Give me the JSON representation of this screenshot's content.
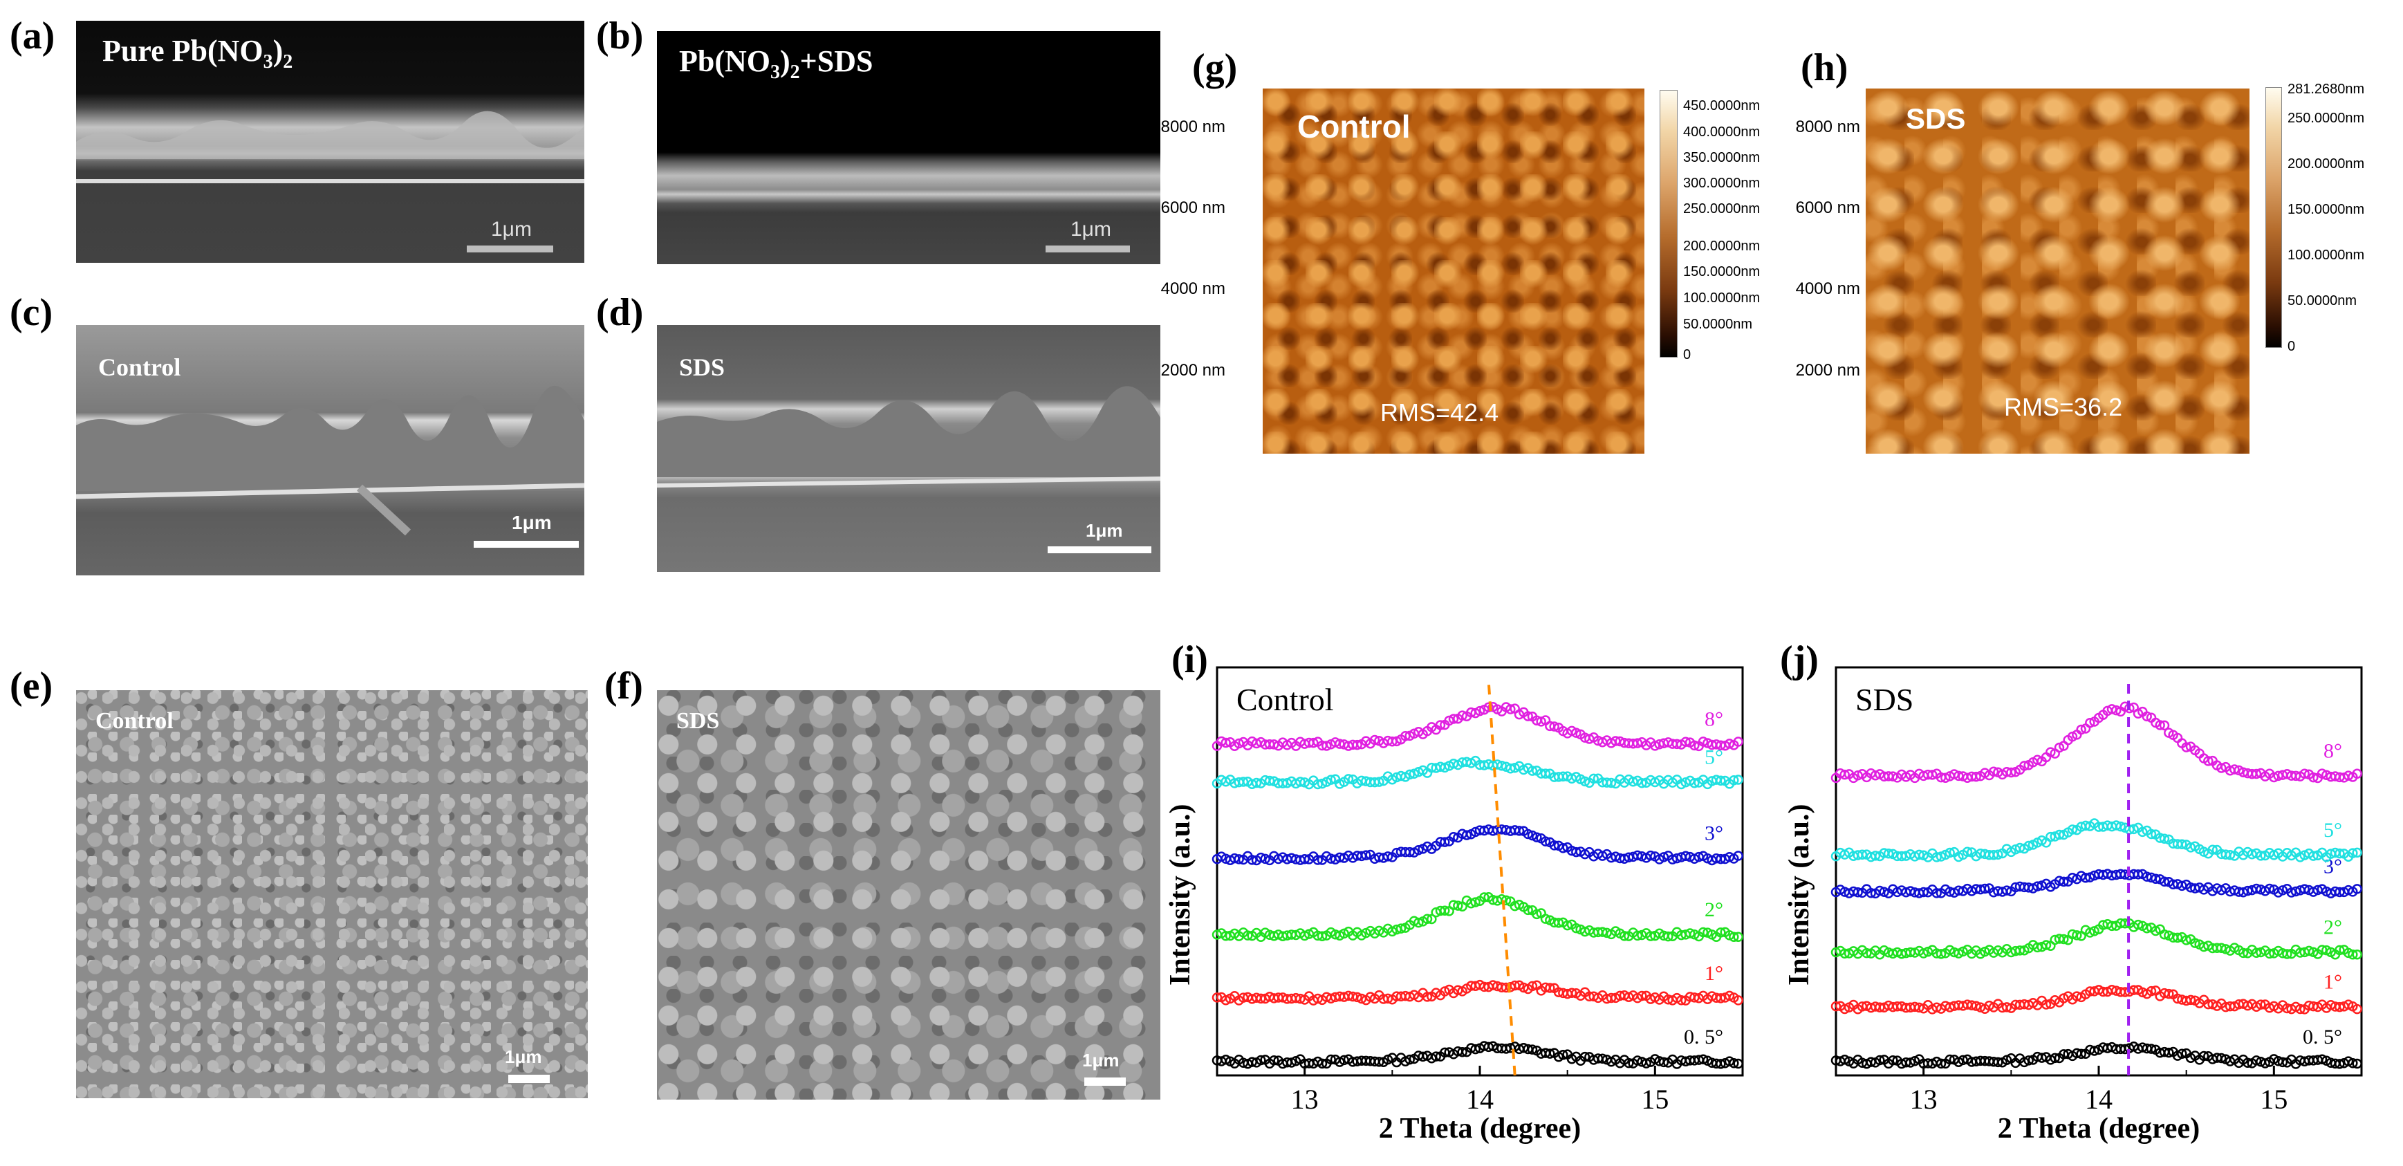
{
  "panels": {
    "a": {
      "letter": "(a)",
      "title": "Pure Pb(NO",
      "sub": "3",
      "close": ")",
      "sub2": "2",
      "scale": "1μm"
    },
    "b": {
      "letter": "(b)",
      "title": "Pb(NO",
      "sub": "3",
      "close": ")",
      "sub2": "2",
      "suffix": "+SDS",
      "scale": "1μm"
    },
    "c": {
      "letter": "(c)",
      "title": "Control",
      "scale": "1μm"
    },
    "d": {
      "letter": "(d)",
      "title": "SDS",
      "scale": "1μm"
    },
    "e": {
      "letter": "(e)",
      "title": "Control",
      "scale": "1μm"
    },
    "f": {
      "letter": "(f)",
      "title": "SDS",
      "scale": "1μm"
    },
    "g": {
      "letter": "(g)",
      "title": "Control",
      "rms": "RMS=42.4",
      "yticks": [
        "8000 nm",
        "6000 nm",
        "4000 nm",
        "2000 nm"
      ],
      "colorbar": [
        "450.0000nm",
        "400.0000nm",
        "350.0000nm",
        "300.0000nm",
        "250.0000nm",
        "200.0000nm",
        "150.0000nm",
        "100.0000nm",
        "50.0000nm",
        "0"
      ]
    },
    "h": {
      "letter": "(h)",
      "title": "SDS",
      "rms": "RMS=36.2",
      "yticks": [
        "8000 nm",
        "6000 nm",
        "4000 nm",
        "2000 nm"
      ],
      "colorbar": [
        "281.2680nm",
        "250.0000nm",
        "200.0000nm",
        "150.0000nm",
        "100.0000nm",
        "50.0000nm",
        "0"
      ]
    },
    "i": {
      "letter": "(i)"
    },
    "j": {
      "letter": "(j)"
    }
  },
  "chart_data": [
    {
      "type": "scatter",
      "title": "Control",
      "xlabel": "2 Theta (degree)",
      "ylabel": "Intensity (a.u.)",
      "xlim": [
        12.5,
        15.5
      ],
      "xticks": [
        13,
        14,
        15
      ],
      "peak_guide": {
        "style": "dashed",
        "color": "#ff8c00",
        "from_x": 14.2,
        "to_x": 14.05
      },
      "series": [
        {
          "name": "0. 5°",
          "color": "#000000",
          "baseline": 0.0,
          "peak_x": 14.1,
          "peak_height": 0.22
        },
        {
          "name": "1°",
          "color": "#ff2020",
          "baseline": 1.0,
          "peak_x": 14.15,
          "peak_height": 0.2
        },
        {
          "name": "2°",
          "color": "#20e020",
          "baseline": 2.0,
          "peak_x": 14.05,
          "peak_height": 0.55
        },
        {
          "name": "3°",
          "color": "#1010d0",
          "baseline": 3.2,
          "peak_x": 14.1,
          "peak_height": 0.45
        },
        {
          "name": "5°",
          "color": "#20e0e0",
          "baseline": 4.4,
          "peak_x": 14.0,
          "peak_height": 0.3
        },
        {
          "name": "8°",
          "color": "#e020e0",
          "baseline": 5.0,
          "peak_x": 14.1,
          "peak_height": 0.55
        }
      ]
    },
    {
      "type": "scatter",
      "title": "SDS",
      "xlabel": "2 Theta (degree)",
      "ylabel": "Intensity (a.u.)",
      "xlim": [
        12.5,
        15.5
      ],
      "xticks": [
        13,
        14,
        15
      ],
      "peak_guide": {
        "style": "dashed",
        "color": "#a020f0",
        "x": 14.17
      },
      "series": [
        {
          "name": "0. 5°",
          "color": "#000000",
          "baseline": 0.0,
          "peak_x": 14.15,
          "peak_height": 0.22
        },
        {
          "name": "1°",
          "color": "#ff2020",
          "baseline": 0.9,
          "peak_x": 14.15,
          "peak_height": 0.28
        },
        {
          "name": "2°",
          "color": "#20e020",
          "baseline": 1.8,
          "peak_x": 14.15,
          "peak_height": 0.45
        },
        {
          "name": "3°",
          "color": "#1010d0",
          "baseline": 2.8,
          "peak_x": 14.1,
          "peak_height": 0.28
        },
        {
          "name": "5°",
          "color": "#20e0e0",
          "baseline": 3.4,
          "peak_x": 14.05,
          "peak_height": 0.5
        },
        {
          "name": "8°",
          "color": "#e020e0",
          "baseline": 4.7,
          "peak_x": 14.15,
          "peak_height": 1.1
        }
      ]
    }
  ]
}
